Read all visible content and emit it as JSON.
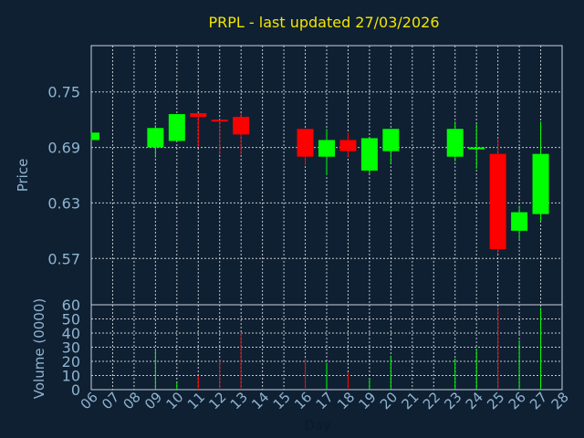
{
  "chart_data": [
    {
      "type": "candlestick",
      "title": "PRPL - last updated 27/03/2026",
      "ylabel": "Price",
      "ylim": [
        0.52,
        0.8
      ],
      "y_ticks": [
        "0.57",
        "0.63",
        "0.69",
        "0.75"
      ],
      "grid": true,
      "up_color": "#00ff00",
      "down_color": "#ff0000",
      "candles": [
        {
          "day": "06",
          "open": 0.698,
          "close": 0.706,
          "high": 0.706,
          "low": 0.698
        },
        {
          "day": "09",
          "open": 0.69,
          "close": 0.711,
          "high": 0.714,
          "low": 0.679
        },
        {
          "day": "10",
          "open": 0.697,
          "close": 0.726,
          "high": 0.726,
          "low": 0.697
        },
        {
          "day": "11",
          "open": 0.727,
          "close": 0.723,
          "high": 0.727,
          "low": 0.691
        },
        {
          "day": "12",
          "open": 0.72,
          "close": 0.719,
          "high": 0.72,
          "low": 0.682
        },
        {
          "day": "13",
          "open": 0.723,
          "close": 0.704,
          "high": 0.727,
          "low": 0.682
        },
        {
          "day": "16",
          "open": 0.71,
          "close": 0.68,
          "high": 0.71,
          "low": 0.671
        },
        {
          "day": "17",
          "open": 0.68,
          "close": 0.698,
          "high": 0.71,
          "low": 0.66
        },
        {
          "day": "18",
          "open": 0.698,
          "close": 0.686,
          "high": 0.706,
          "low": 0.68
        },
        {
          "day": "19",
          "open": 0.665,
          "close": 0.7,
          "high": 0.7,
          "low": 0.662
        },
        {
          "day": "20",
          "open": 0.686,
          "close": 0.71,
          "high": 0.71,
          "low": 0.672
        },
        {
          "day": "23",
          "open": 0.68,
          "close": 0.71,
          "high": 0.718,
          "low": 0.675
        },
        {
          "day": "24",
          "open": 0.689,
          "close": 0.69,
          "high": 0.715,
          "low": 0.667
        },
        {
          "day": "25",
          "open": 0.683,
          "close": 0.58,
          "high": 0.7,
          "low": 0.575
        },
        {
          "day": "26",
          "open": 0.6,
          "close": 0.62,
          "high": 0.627,
          "low": 0.59
        },
        {
          "day": "27",
          "open": 0.618,
          "close": 0.683,
          "high": 0.718,
          "low": 0.61
        }
      ]
    },
    {
      "type": "bar",
      "xlabel": "Day",
      "ylabel": "Volume (0000)",
      "ylim": [
        0,
        60
      ],
      "y_ticks": [
        "0",
        "10",
        "20",
        "30",
        "40",
        "50",
        "60"
      ],
      "categories": [
        "06",
        "07",
        "08",
        "09",
        "10",
        "11",
        "12",
        "13",
        "14",
        "15",
        "16",
        "17",
        "18",
        "19",
        "20",
        "21",
        "22",
        "23",
        "24",
        "25",
        "26",
        "27",
        "28"
      ],
      "volumes": [
        {
          "day": "09",
          "value": 29,
          "direction": "up"
        },
        {
          "day": "10",
          "value": 5,
          "direction": "up"
        },
        {
          "day": "11",
          "value": 10,
          "direction": "down"
        },
        {
          "day": "12",
          "value": 21,
          "direction": "down"
        },
        {
          "day": "13",
          "value": 40,
          "direction": "down"
        },
        {
          "day": "16",
          "value": 22,
          "direction": "down"
        },
        {
          "day": "17",
          "value": 19,
          "direction": "up"
        },
        {
          "day": "18",
          "value": 12,
          "direction": "down"
        },
        {
          "day": "19",
          "value": 8,
          "direction": "up"
        },
        {
          "day": "20",
          "value": 24,
          "direction": "up"
        },
        {
          "day": "23",
          "value": 22,
          "direction": "up"
        },
        {
          "day": "24",
          "value": 29,
          "direction": "up"
        },
        {
          "day": "25",
          "value": 58,
          "direction": "down"
        },
        {
          "day": "26",
          "value": 35,
          "direction": "up"
        },
        {
          "day": "27",
          "value": 58,
          "direction": "up"
        }
      ]
    }
  ]
}
